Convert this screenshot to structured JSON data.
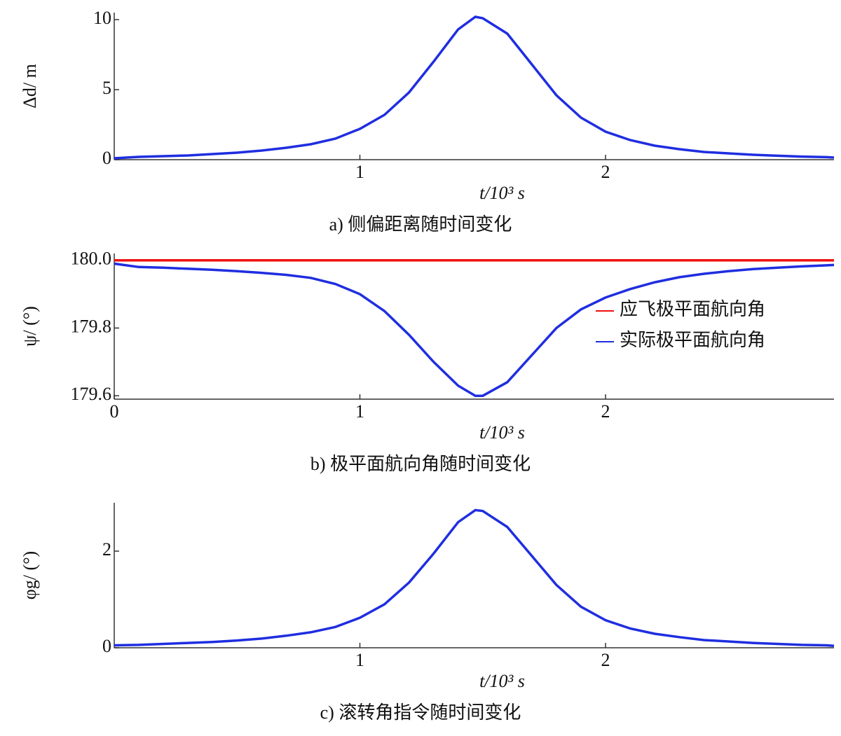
{
  "chart_data": [
    {
      "type": "line",
      "caption": "a) 侧偏距离随时间变化",
      "xlabel": "t/10³ s",
      "ylabel": "Δd/ m",
      "x": [
        0,
        0.1,
        0.2,
        0.3,
        0.4,
        0.5,
        0.6,
        0.7,
        0.8,
        0.9,
        1.0,
        1.1,
        1.2,
        1.3,
        1.4,
        1.47,
        1.5,
        1.6,
        1.7,
        1.8,
        1.9,
        2.0,
        2.1,
        2.2,
        2.3,
        2.4,
        2.5,
        2.6,
        2.7,
        2.8,
        2.9,
        2.93
      ],
      "series": [
        {
          "name": "Δd",
          "color": "#1f2ee0",
          "values": [
            0.1,
            0.2,
            0.25,
            0.3,
            0.4,
            0.5,
            0.65,
            0.85,
            1.1,
            1.5,
            2.2,
            3.2,
            4.8,
            7.0,
            9.3,
            10.2,
            10.1,
            9.0,
            6.8,
            4.6,
            3.0,
            2.0,
            1.4,
            1.0,
            0.75,
            0.55,
            0.45,
            0.35,
            0.28,
            0.22,
            0.18,
            0.15
          ]
        }
      ],
      "xlim": [
        0,
        2.93
      ],
      "ylim": [
        0,
        10.5
      ],
      "xticks": [
        1,
        2
      ],
      "yticks": [
        0,
        5,
        10
      ]
    },
    {
      "type": "line",
      "caption": "b) 极平面航向角随时间变化",
      "xlabel": "t/10³ s",
      "ylabel": "ψ/ (°)",
      "x": [
        0,
        0.1,
        0.2,
        0.3,
        0.4,
        0.5,
        0.6,
        0.7,
        0.8,
        0.9,
        1.0,
        1.1,
        1.2,
        1.3,
        1.4,
        1.47,
        1.5,
        1.6,
        1.7,
        1.8,
        1.9,
        2.0,
        2.1,
        2.2,
        2.3,
        2.4,
        2.5,
        2.6,
        2.7,
        2.8,
        2.9,
        2.93
      ],
      "series": [
        {
          "name": "应飞极平面航向角",
          "color": "#f01010",
          "values": [
            180,
            180,
            180,
            180,
            180,
            180,
            180,
            180,
            180,
            180,
            180,
            180,
            180,
            180,
            180,
            180,
            180,
            180,
            180,
            180,
            180,
            180,
            180,
            180,
            180,
            180,
            180,
            180,
            180,
            180,
            180,
            180
          ]
        },
        {
          "name": "实际极平面航向角",
          "color": "#1f2ee0",
          "values": [
            179.99,
            179.98,
            179.978,
            179.975,
            179.972,
            179.968,
            179.963,
            179.957,
            179.948,
            179.93,
            179.9,
            179.85,
            179.78,
            179.7,
            179.63,
            179.6,
            179.6,
            179.64,
            179.72,
            179.8,
            179.855,
            179.89,
            179.915,
            179.935,
            179.95,
            179.96,
            179.968,
            179.974,
            179.978,
            179.982,
            179.985,
            179.986
          ]
        }
      ],
      "legend": "right",
      "xlim": [
        0,
        2.93
      ],
      "ylim": [
        179.59,
        180.02
      ],
      "xticks": [
        0,
        1,
        2
      ],
      "yticks": [
        179.6,
        179.8,
        {
          "value": 180,
          "label": "180.0"
        }
      ]
    },
    {
      "type": "line",
      "caption": "c) 滚转角指令随时间变化",
      "xlabel": "t/10³ s",
      "ylabel": "φg/ (°)",
      "x": [
        0,
        0.1,
        0.2,
        0.3,
        0.4,
        0.5,
        0.6,
        0.7,
        0.8,
        0.9,
        1.0,
        1.1,
        1.2,
        1.3,
        1.4,
        1.47,
        1.5,
        1.6,
        1.7,
        1.8,
        1.9,
        2.0,
        2.1,
        2.2,
        2.3,
        2.4,
        2.5,
        2.6,
        2.7,
        2.8,
        2.9,
        2.93
      ],
      "series": [
        {
          "name": "φg",
          "color": "#1f2ee0",
          "values": [
            0.05,
            0.06,
            0.08,
            0.1,
            0.12,
            0.15,
            0.19,
            0.25,
            0.32,
            0.43,
            0.62,
            0.9,
            1.35,
            1.95,
            2.6,
            2.85,
            2.83,
            2.5,
            1.9,
            1.3,
            0.85,
            0.57,
            0.4,
            0.29,
            0.22,
            0.16,
            0.13,
            0.1,
            0.08,
            0.06,
            0.05,
            0.04
          ]
        }
      ],
      "xlim": [
        0,
        2.93
      ],
      "ylim": [
        0,
        3
      ],
      "xticks": [
        1,
        2
      ],
      "yticks": [
        0,
        2
      ]
    }
  ]
}
